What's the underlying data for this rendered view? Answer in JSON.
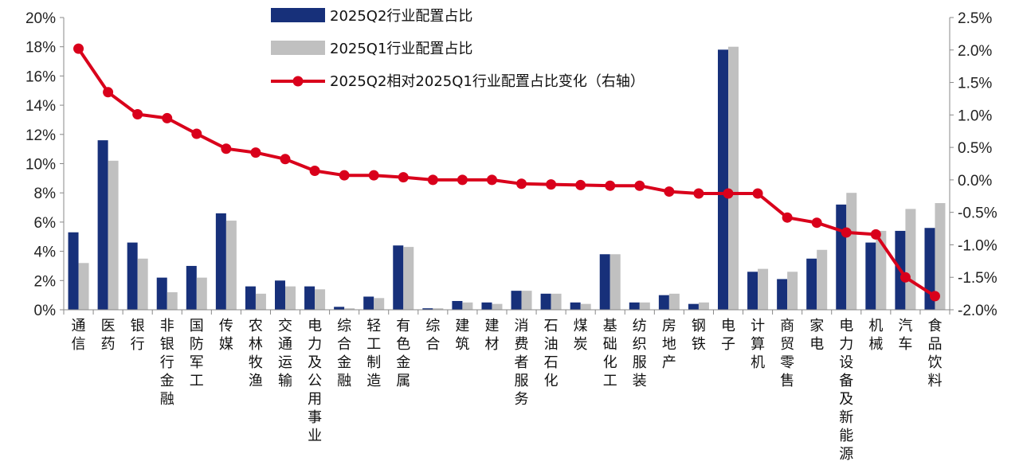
{
  "chart_data": {
    "type": "bar",
    "title": "",
    "xlabel": "",
    "ylabel": "",
    "y_left_lim": [
      0,
      20
    ],
    "y_left_ticks": [
      "0%",
      "2%",
      "4%",
      "6%",
      "8%",
      "10%",
      "12%",
      "14%",
      "16%",
      "18%",
      "20%"
    ],
    "y_right_lim": [
      -2.0,
      2.5
    ],
    "y_right_ticks": [
      "-2.0%",
      "-1.5%",
      "-1.0%",
      "-0.5%",
      "0.0%",
      "0.5%",
      "1.0%",
      "1.5%",
      "2.0%",
      "2.5%"
    ],
    "grid": false,
    "legend_position": "top-center",
    "colors": {
      "q2": "#17307a",
      "q1": "#c0c0c0",
      "change": "#d9001b"
    },
    "categories": [
      "通信",
      "医药",
      "银行",
      "非银行金融",
      "国防军工",
      "传媒",
      "农林牧渔",
      "交通运输",
      "电力及公用事业",
      "综合金融",
      "轻工制造",
      "有色金属",
      "综合",
      "建筑",
      "建材",
      "消费者服务",
      "石油石化",
      "煤炭",
      "基础化工",
      "纺织服装",
      "房地产",
      "钢铁",
      "电子",
      "计算机",
      "商贸零售",
      "家电",
      "电力设备及新能源",
      "机械",
      "汽车",
      "食品饮料"
    ],
    "series": [
      {
        "name": "2025Q2行业配置占比",
        "type": "bar",
        "axis": "left",
        "values": [
          5.3,
          11.6,
          4.6,
          2.2,
          3.0,
          6.6,
          1.6,
          2.0,
          1.6,
          0.2,
          0.9,
          4.4,
          0.1,
          0.6,
          0.5,
          1.3,
          1.1,
          0.5,
          3.8,
          0.5,
          1.0,
          0.4,
          17.8,
          2.6,
          2.1,
          3.5,
          7.2,
          4.6,
          5.4,
          5.6
        ]
      },
      {
        "name": "2025Q1行业配置占比",
        "type": "bar",
        "axis": "left",
        "values": [
          3.2,
          10.2,
          3.5,
          1.2,
          2.2,
          6.1,
          1.1,
          1.6,
          1.4,
          0.1,
          0.8,
          4.3,
          0.1,
          0.5,
          0.4,
          1.3,
          1.1,
          0.4,
          3.8,
          0.5,
          1.1,
          0.5,
          18.0,
          2.8,
          2.6,
          4.1,
          8.0,
          5.4,
          6.9,
          7.3
        ]
      },
      {
        "name": "2025Q2相对2025Q1行业配置占比变化（右轴）",
        "type": "line",
        "axis": "right",
        "values": [
          2.02,
          1.35,
          1.01,
          0.95,
          0.71,
          0.48,
          0.42,
          0.32,
          0.14,
          0.07,
          0.07,
          0.04,
          0.0,
          0.0,
          0.0,
          -0.06,
          -0.07,
          -0.08,
          -0.09,
          -0.09,
          -0.18,
          -0.21,
          -0.21,
          -0.21,
          -0.58,
          -0.66,
          -0.81,
          -0.84,
          -1.5,
          -1.79
        ]
      }
    ]
  }
}
